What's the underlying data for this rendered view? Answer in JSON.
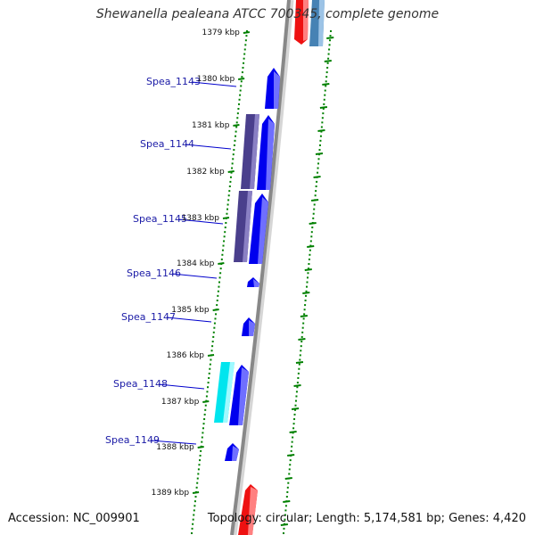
{
  "title": "Shewanella pealeana ATCC 700345, complete genome",
  "accession": "Accession: NC_009901",
  "summary": "Topology: circular; Length: 5,174,581 bp; Genes: 4,420",
  "kbp_labels": [
    "1379 kbp",
    "1380 kbp",
    "1381 kbp",
    "1382 kbp",
    "1383 kbp",
    "1384 kbp",
    "1385 kbp",
    "1386 kbp",
    "1387 kbp",
    "1388 kbp",
    "1389 kbp"
  ],
  "genes": [
    {
      "id": "Spea_1143"
    },
    {
      "id": "Spea_1144"
    },
    {
      "id": "Spea_1145"
    },
    {
      "id": "Spea_1146"
    },
    {
      "id": "Spea_1147"
    },
    {
      "id": "Spea_1148"
    },
    {
      "id": "Spea_1149"
    }
  ],
  "colors": {
    "cds": "#0000ee",
    "cds_dark": "#4a3f8c",
    "highlight": "#00e5ee",
    "red_feature": "#ee1111",
    "steel_feature": "#4682b4",
    "tick": "#008000",
    "backbone": "#888888"
  }
}
